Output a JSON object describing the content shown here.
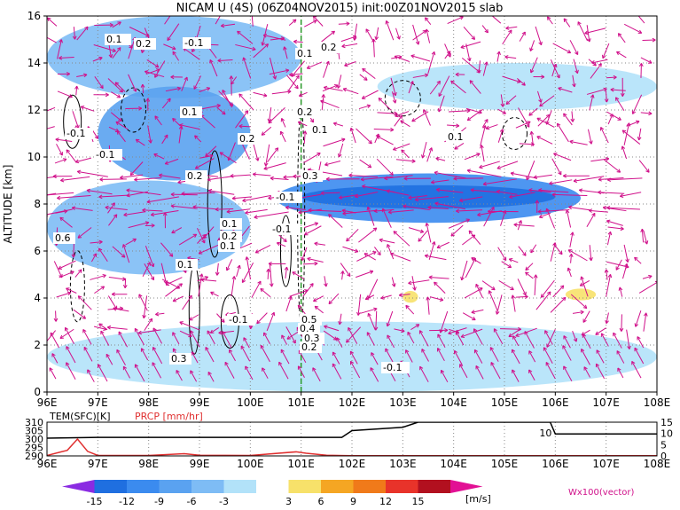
{
  "title": "NICAM U (4S) (06Z04NOV2015) init:00Z01NOV2015 slab",
  "chart_data": [
    {
      "type": "heatmap",
      "xlabel": "",
      "ylabel": "ALTITUDE [km]",
      "xticks": [
        "96E",
        "97E",
        "98E",
        "99E",
        "100E",
        "101E",
        "102E",
        "103E",
        "104E",
        "105E",
        "106E",
        "107E",
        "108E"
      ],
      "yticks": [
        "0",
        "2",
        "4",
        "6",
        "8",
        "10",
        "12",
        "14",
        "16"
      ],
      "xlim": [
        96,
        108
      ],
      "ylim": [
        0,
        16
      ],
      "grid": true,
      "contour_labels": [
        "0.1",
        "0.2",
        "-0.1",
        "0.1",
        "0.2",
        "-0.1",
        "0.1",
        "0.2",
        "-0.1",
        "0.2",
        "-0.1",
        "-0.1",
        "0.1",
        "0.2",
        "0.1",
        "0.6",
        "0.3",
        "0.2",
        "0.1",
        "0.1",
        "-0.1",
        "-0.1",
        "0.5",
        "0.4",
        "0.3",
        "0.2",
        "0.3",
        "0.1",
        "0.1"
      ],
      "shading_regions": [
        {
          "x": [
            96.0,
            101.0
          ],
          "y": [
            12.5,
            16.0
          ],
          "value": -6
        },
        {
          "x": [
            97.0,
            100.0
          ],
          "y": [
            9.0,
            13.0
          ],
          "value": -9
        },
        {
          "x": [
            100.5,
            106.5
          ],
          "y": [
            7.2,
            9.3
          ],
          "value": -12
        },
        {
          "x": [
            101.0,
            106.0
          ],
          "y": [
            7.8,
            8.8
          ],
          "value": -15
        },
        {
          "x": [
            96.0,
            100.0
          ],
          "y": [
            5.0,
            9.0
          ],
          "value": -6
        },
        {
          "x": [
            96.0,
            108.0
          ],
          "y": [
            0.0,
            3.0
          ],
          "value": -3
        },
        {
          "x": [
            102.5,
            108.0
          ],
          "y": [
            12.0,
            14.0
          ],
          "value": -3
        },
        {
          "x": [
            103.0,
            103.3
          ],
          "y": [
            3.8,
            4.3
          ],
          "value": 3
        },
        {
          "x": [
            106.2,
            106.8
          ],
          "y": [
            3.9,
            4.4
          ],
          "value": 3
        }
      ],
      "lines": [
        {
          "name": "",
          "x": [
            101.0,
            101.0
          ],
          "y": [
            0,
            16
          ]
        }
      ]
    },
    {
      "type": "line",
      "xticks": [
        "96E",
        "97E",
        "98E",
        "99E",
        "100E",
        "101E",
        "102E",
        "103E",
        "104E",
        "105E",
        "106E",
        "107E",
        "108E"
      ],
      "left_label": "TEM(SFC)[K]",
      "right_label": "PRCP [mm/hr]",
      "left_ticks": [
        "310",
        "305",
        "300",
        "295",
        "290"
      ],
      "right_ticks": [
        "15",
        "10",
        "5",
        "0"
      ],
      "contour_label": "10",
      "series": [
        {
          "name": "TEM(SFC)[K]",
          "x": [
            96.0,
            97.0,
            98.0,
            99.0,
            100.0,
            101.0,
            101.8,
            102.0,
            102.5,
            103.0,
            103.3,
            105.0,
            105.9,
            106.0,
            108.0
          ],
          "values": [
            300.5,
            301.0,
            301.0,
            301.0,
            301.0,
            301.0,
            301.0,
            305.0,
            306.0,
            307.0,
            310.0,
            310.0,
            310.0,
            303.0,
            303.0
          ]
        },
        {
          "name": "PRCP [mm/hr]",
          "x": [
            96.0,
            96.4,
            96.6,
            96.8,
            97.0,
            98.0,
            98.7,
            99.0,
            100.0,
            100.9,
            101.1,
            101.5,
            102.0,
            108.0
          ],
          "values": [
            0.2,
            2.5,
            7.5,
            2.0,
            0.2,
            0.2,
            1.0,
            0.3,
            0.2,
            1.8,
            1.2,
            0.3,
            0.1,
            0.1
          ]
        }
      ]
    }
  ],
  "colorbar": {
    "ticks": [
      "-15",
      "-12",
      "-9",
      "-6",
      "-3",
      "3",
      "6",
      "9",
      "12",
      "15"
    ],
    "unit": "[m/s]",
    "colors": [
      "#8a2be2",
      "#1f6fe0",
      "#3b8bef",
      "#5aa2f0",
      "#7ebcf5",
      "#b2e2f9",
      "#ffffff",
      "#f7e16a",
      "#f5a623",
      "#f07a1a",
      "#e8332a",
      "#b2101f",
      "#e21094"
    ]
  },
  "legend": {
    "vector_label": "Wx100(vector)"
  }
}
